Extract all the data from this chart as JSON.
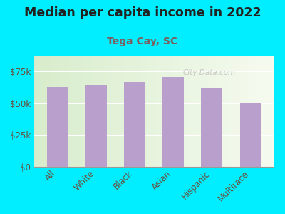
{
  "title": "Median per capita income in 2022",
  "subtitle": "Tega Cay, SC",
  "categories": [
    "All",
    "White",
    "Black",
    "Asian",
    "Hispanic",
    "Multirace"
  ],
  "values": [
    63000,
    64500,
    67000,
    70500,
    62000,
    50000
  ],
  "bar_color": "#b9a0cc",
  "background_outer": "#00eeff",
  "title_color": "#222222",
  "subtitle_color": "#7a6060",
  "tick_label_color": "#6b4c3b",
  "watermark": "City-Data.com",
  "ylim": [
    0,
    87500
  ],
  "yticks": [
    0,
    25000,
    50000,
    75000
  ],
  "ytick_labels": [
    "$0",
    "$25k",
    "$50k",
    "$75k"
  ],
  "title_fontsize": 12.5,
  "subtitle_fontsize": 10,
  "tick_fontsize": 8.5,
  "inner_bg_left": "#d8edcc",
  "inner_bg_right": "#f5fbf0"
}
